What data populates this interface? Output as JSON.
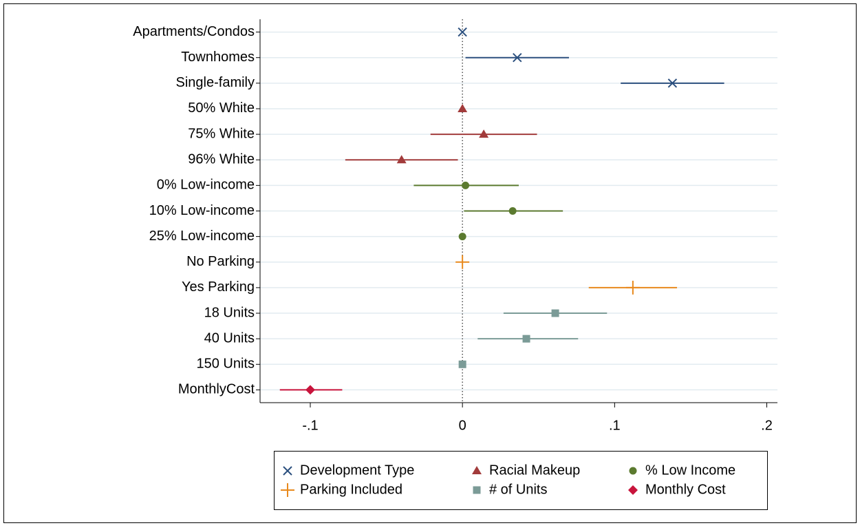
{
  "chart_data": {
    "type": "coefplot",
    "categories": [
      "Apartments/Condos",
      "Townhomes",
      "Single-family",
      "50% White",
      "75% White",
      "96% White",
      "0% Low-income",
      "10% Low-income",
      "25% Low-income",
      "No Parking",
      "Yes Parking",
      "18 Units",
      "40 Units",
      "150 Units",
      "MonthlyCost"
    ],
    "series": [
      {
        "name": "Development Type",
        "color": "#2b4f7e",
        "marker": "x",
        "values": [
          0,
          0.036,
          0.138,
          null,
          null,
          null,
          null,
          null,
          null,
          null,
          null,
          null,
          null,
          null,
          null
        ],
        "lower": [
          null,
          0.002,
          0.104,
          null,
          null,
          null,
          null,
          null,
          null,
          null,
          null,
          null,
          null,
          null,
          null
        ],
        "upper": [
          null,
          0.07,
          0.172,
          null,
          null,
          null,
          null,
          null,
          null,
          null,
          null,
          null,
          null,
          null,
          null
        ]
      },
      {
        "name": "Racial Makeup",
        "color": "#a23b3b",
        "marker": "triangle",
        "values": [
          null,
          null,
          null,
          0,
          0.014,
          -0.04,
          null,
          null,
          null,
          null,
          null,
          null,
          null,
          null,
          null
        ],
        "lower": [
          null,
          null,
          null,
          null,
          -0.021,
          -0.077,
          null,
          null,
          null,
          null,
          null,
          null,
          null,
          null,
          null
        ],
        "upper": [
          null,
          null,
          null,
          null,
          0.049,
          -0.003,
          null,
          null,
          null,
          null,
          null,
          null,
          null,
          null,
          null
        ]
      },
      {
        "name": "% Low Income",
        "color": "#5b7a2f",
        "marker": "circle",
        "values": [
          null,
          null,
          null,
          null,
          null,
          null,
          0.002,
          0.033,
          0,
          null,
          null,
          null,
          null,
          null,
          null
        ],
        "lower": [
          null,
          null,
          null,
          null,
          null,
          null,
          -0.032,
          0.001,
          null,
          null,
          null,
          null,
          null,
          null,
          null
        ],
        "upper": [
          null,
          null,
          null,
          null,
          null,
          null,
          0.037,
          0.066,
          null,
          null,
          null,
          null,
          null,
          null,
          null
        ]
      },
      {
        "name": "Parking Included",
        "color": "#e8891c",
        "marker": "plus",
        "values": [
          null,
          null,
          null,
          null,
          null,
          null,
          null,
          null,
          null,
          0,
          0.112,
          null,
          null,
          null,
          null
        ],
        "lower": [
          null,
          null,
          null,
          null,
          null,
          null,
          null,
          null,
          null,
          null,
          0.083,
          null,
          null,
          null,
          null
        ],
        "upper": [
          null,
          null,
          null,
          null,
          null,
          null,
          null,
          null,
          null,
          null,
          0.141,
          null,
          null,
          null,
          null
        ]
      },
      {
        "name": "# of Units",
        "color": "#7b9b97",
        "marker": "square",
        "values": [
          null,
          null,
          null,
          null,
          null,
          null,
          null,
          null,
          null,
          null,
          null,
          0.061,
          0.042,
          0,
          null
        ],
        "lower": [
          null,
          null,
          null,
          null,
          null,
          null,
          null,
          null,
          null,
          null,
          null,
          0.027,
          0.01,
          null,
          null
        ],
        "upper": [
          null,
          null,
          null,
          null,
          null,
          null,
          null,
          null,
          null,
          null,
          null,
          0.095,
          0.076,
          null,
          null
        ]
      },
      {
        "name": "Monthly Cost",
        "color": "#c8143c",
        "marker": "diamond",
        "values": [
          null,
          null,
          null,
          null,
          null,
          null,
          null,
          null,
          null,
          null,
          null,
          null,
          null,
          null,
          -0.1
        ],
        "lower": [
          null,
          null,
          null,
          null,
          null,
          null,
          null,
          null,
          null,
          null,
          null,
          null,
          null,
          null,
          -0.12
        ],
        "upper": [
          null,
          null,
          null,
          null,
          null,
          null,
          null,
          null,
          null,
          null,
          null,
          null,
          null,
          null,
          -0.079
        ]
      }
    ],
    "xlim": [
      -0.133,
      0.207
    ],
    "xticks": [
      {
        "value": -0.1,
        "label": "-.1"
      },
      0,
      {
        "value": 0.1,
        "label": ".1"
      },
      {
        "value": 0.2,
        "label": ".2"
      }
    ],
    "grid": true,
    "reference_line": 0
  }
}
